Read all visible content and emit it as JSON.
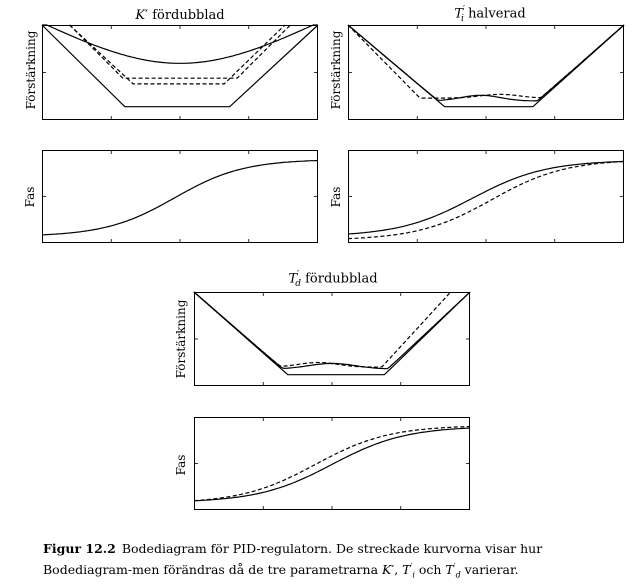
{
  "panels": [
    {
      "id": "k",
      "title_sym": "K",
      "title_prime": "′",
      "title_sub": "",
      "title_text": "fördubblad",
      "gain_label": "Förstärkning",
      "phase_label": "Fas"
    },
    {
      "id": "ti",
      "title_sym": "T",
      "title_prime": "′",
      "title_sub": "i",
      "title_text": "halverad",
      "gain_label": "Förstärkning",
      "phase_label": "Fas"
    },
    {
      "id": "td",
      "title_sym": "T",
      "title_prime": "′",
      "title_sub": "d",
      "title_text": "fördubblad",
      "gain_label": "Förstärkning",
      "phase_label": "Fas"
    }
  ],
  "caption": {
    "figure_label": "Figur 12.2",
    "text_1": "Bodediagram för PID-regulatorn. De streckade kurvorna visar hur Bodediagram-men förändras då de tre parametrarna ",
    "sep_1": ", ",
    "sep_2": " och ",
    "text_2": " varierar."
  },
  "chart_data": [
    {
      "type": "line",
      "panel": "K′ fördubblad",
      "plot": "gain",
      "ylabel": "Förstärkning",
      "series": [
        {
          "style": "solid"
        },
        {
          "style": "dashed"
        }
      ]
    },
    {
      "type": "line",
      "panel": "K′ fördubblad",
      "plot": "phase",
      "ylabel": "Fas",
      "series": [
        {
          "style": "solid"
        }
      ]
    },
    {
      "type": "line",
      "panel": "T′i halverad",
      "plot": "gain",
      "ylabel": "Förstärkning",
      "series": [
        {
          "style": "solid"
        },
        {
          "style": "dashed"
        }
      ]
    },
    {
      "type": "line",
      "panel": "T′i halverad",
      "plot": "phase",
      "ylabel": "Fas",
      "series": [
        {
          "style": "solid"
        },
        {
          "style": "dashed"
        }
      ]
    },
    {
      "type": "line",
      "panel": "T′d fördubblad",
      "plot": "gain",
      "ylabel": "Förstärkning",
      "series": [
        {
          "style": "solid"
        },
        {
          "style": "dashed"
        }
      ]
    },
    {
      "type": "line",
      "panel": "T′d fördubblad",
      "plot": "phase",
      "ylabel": "Fas",
      "series": [
        {
          "style": "solid"
        },
        {
          "style": "dashed"
        }
      ]
    }
  ]
}
